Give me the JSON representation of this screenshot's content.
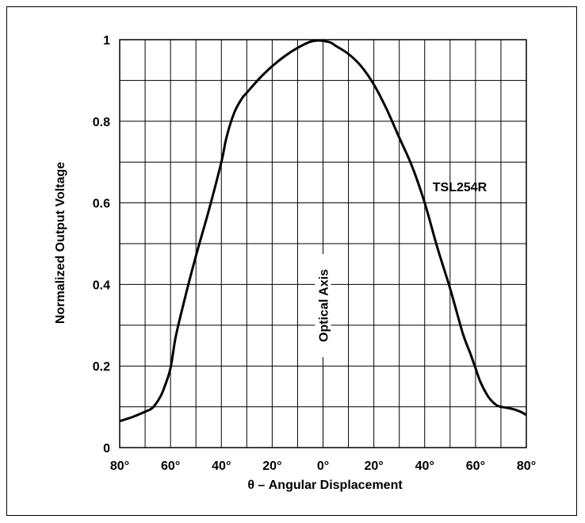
{
  "chart_data": {
    "type": "line",
    "title": "",
    "xlabel": "θ – Angular Displacement",
    "ylabel": "Normalized Output Voltage",
    "xlim": [
      -80,
      80
    ],
    "ylim": [
      0,
      1
    ],
    "grid": true,
    "x_ticks": [
      -80,
      -60,
      -40,
      -20,
      0,
      20,
      40,
      60,
      80
    ],
    "x_tick_labels": [
      "80°",
      "60°",
      "40°",
      "20°",
      "0°",
      "20°",
      "40°",
      "60°",
      "80°"
    ],
    "y_ticks": [
      0,
      0.2,
      0.4,
      0.6,
      0.8,
      1
    ],
    "y_tick_labels": [
      "0",
      "0.2",
      "0.4",
      "0.6",
      "0.8",
      "1"
    ],
    "annotations": {
      "series_label": "TSL254R",
      "axis_label": "Optical Axis"
    },
    "series": [
      {
        "name": "TSL254R",
        "x": [
          -80,
          -75,
          -70,
          -67,
          -64,
          -62,
          -60,
          -58,
          -55,
          -50,
          -45,
          -40,
          -38,
          -35,
          -32,
          -30,
          -25,
          -20,
          -15,
          -10,
          -5,
          -2,
          0,
          3,
          5,
          10,
          15,
          20,
          25,
          30,
          35,
          40,
          45,
          50,
          55,
          58,
          60,
          62,
          65,
          68,
          70,
          72,
          75,
          78,
          80
        ],
        "y": [
          0.065,
          0.075,
          0.088,
          0.098,
          0.125,
          0.155,
          0.195,
          0.27,
          0.35,
          0.47,
          0.58,
          0.7,
          0.76,
          0.82,
          0.855,
          0.87,
          0.905,
          0.935,
          0.96,
          0.98,
          0.995,
          0.998,
          0.997,
          0.993,
          0.985,
          0.965,
          0.935,
          0.89,
          0.83,
          0.76,
          0.69,
          0.6,
          0.49,
          0.39,
          0.28,
          0.23,
          0.195,
          0.16,
          0.125,
          0.105,
          0.1,
          0.098,
          0.094,
          0.087,
          0.08
        ]
      }
    ]
  },
  "colors": {
    "line": "#000000",
    "grid": "#000000",
    "background": "#ffffff"
  }
}
